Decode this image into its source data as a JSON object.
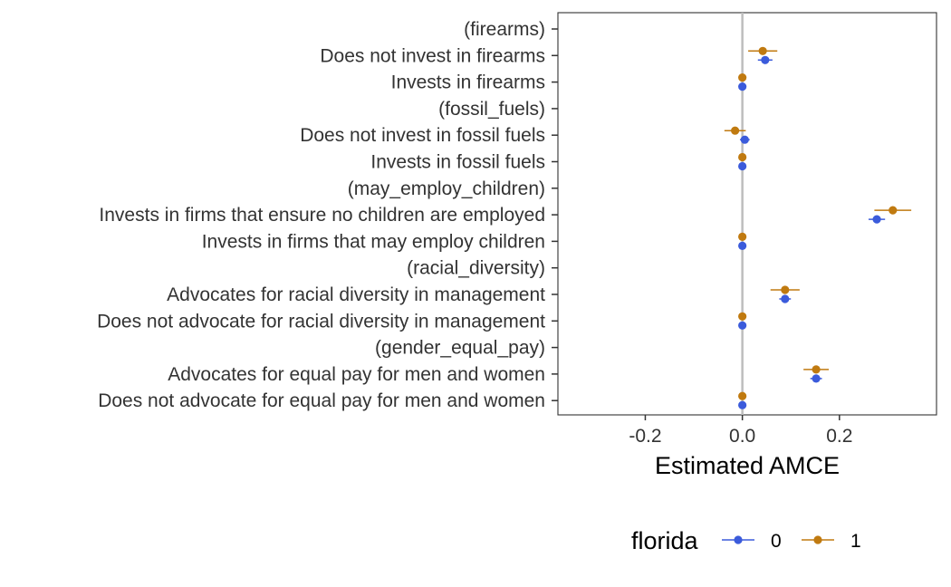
{
  "chart_data": {
    "type": "scatter",
    "subtype": "coefficient-plot-with-error-bars",
    "xlabel": "Estimated AMCE",
    "ylabel": "",
    "xlim": [
      -0.38,
      0.4
    ],
    "x_ticks": [
      -0.2,
      0.0,
      0.2
    ],
    "x_tick_labels": [
      "-0.2",
      "0.0",
      "0.2"
    ],
    "reference_line": 0.0,
    "grid": false,
    "legend": {
      "title": "florida",
      "position": "bottom"
    },
    "categories": [
      "(firearms)",
      "Does not invest in firearms",
      "Invests in firearms",
      "(fossil_fuels)",
      "Does not invest in fossil fuels",
      "Invests in fossil fuels",
      "(may_employ_children)",
      "Invests in firms that ensure no children are employed",
      "Invests in firms that may employ children",
      "(racial_diversity)",
      "Advocates for racial diversity in management",
      "Does not advocate for racial diversity in management",
      "(gender_equal_pay)",
      "Advocates for equal pay for men and women",
      "Does not advocate for equal pay for men and women"
    ],
    "series": [
      {
        "name": "0",
        "color": "#3b5bdb",
        "values": [
          null,
          0.047,
          0.0,
          null,
          0.005,
          0.0,
          null,
          0.277,
          0.0,
          null,
          0.088,
          0.0,
          null,
          0.152,
          0.0
        ],
        "lower": [
          null,
          0.032,
          0.0,
          null,
          -0.005,
          0.0,
          null,
          0.26,
          0.0,
          null,
          0.076,
          0.0,
          null,
          0.14,
          0.0
        ],
        "upper": [
          null,
          0.062,
          0.0,
          null,
          0.015,
          0.0,
          null,
          0.294,
          0.0,
          null,
          0.1,
          0.0,
          null,
          0.164,
          0.0
        ]
      },
      {
        "name": "1",
        "color": "#c07a10",
        "values": [
          null,
          0.042,
          0.0,
          null,
          -0.015,
          0.0,
          null,
          0.31,
          0.0,
          null,
          0.088,
          0.0,
          null,
          0.152,
          0.0
        ],
        "lower": [
          null,
          0.012,
          0.0,
          null,
          -0.037,
          0.0,
          null,
          0.272,
          0.0,
          null,
          0.058,
          0.0,
          null,
          0.126,
          0.0
        ],
        "upper": [
          null,
          0.072,
          0.0,
          null,
          0.007,
          0.0,
          null,
          0.348,
          0.0,
          null,
          0.118,
          0.0,
          null,
          0.178,
          0.0
        ]
      }
    ]
  }
}
